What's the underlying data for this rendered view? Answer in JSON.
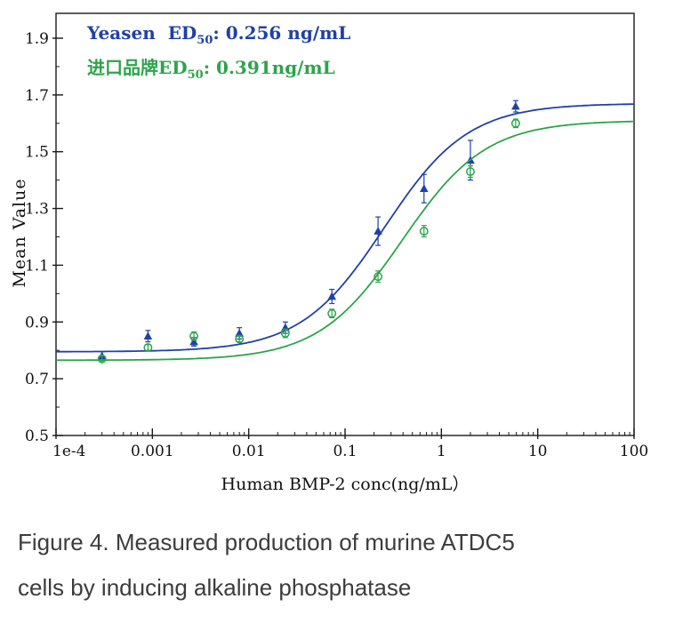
{
  "chart_data": {
    "type": "scatter",
    "title": "",
    "xlabel": "Human BMP-2 conc(ng/mL）",
    "ylabel": "Mean Value",
    "xscale": "log",
    "xlim": [
      0.0001,
      100
    ],
    "ylim": [
      0.5,
      1.9
    ],
    "grid": false,
    "legend_position": "top-left",
    "x_tick_labels": [
      "1e-4",
      "0.001",
      "0.01",
      "0.1",
      "1",
      "10",
      "100"
    ],
    "x_tick_values": [
      0.0001,
      0.001,
      0.01,
      0.1,
      1,
      10,
      100
    ],
    "y_tick_labels": [
      "0.5",
      "0.7",
      "0.9",
      "1.1",
      "1.3",
      "1.5",
      "1.7",
      "1.9"
    ],
    "y_tick_values": [
      0.5,
      0.7,
      0.9,
      1.1,
      1.3,
      1.5,
      1.7,
      1.9
    ],
    "series": [
      {
        "name": "Yeasen",
        "color": "#2040a8",
        "marker": "triangle",
        "ed50": "0.256 ng/mL",
        "legend": {
          "name": "Yeasen",
          "ed_label": "ED",
          "ed_sub": "50",
          "ed_value": ": 0.256 ng/mL"
        },
        "x": [
          0.0003,
          0.0009,
          0.0027,
          0.008,
          0.024,
          0.073,
          0.22,
          0.66,
          2.0,
          5.9
        ],
        "y": [
          0.78,
          0.85,
          0.83,
          0.86,
          0.88,
          0.99,
          1.22,
          1.37,
          1.47,
          1.66
        ],
        "yerr": [
          0.015,
          0.02,
          0.015,
          0.02,
          0.02,
          0.025,
          0.05,
          0.05,
          0.07,
          0.02
        ],
        "fit": {
          "bottom": 0.795,
          "top": 1.67,
          "ed50": 0.256,
          "hill": 1.0
        }
      },
      {
        "name": "进口品牌",
        "color": "#2ca44a",
        "marker": "circle-open",
        "ed50": "0.391 ng/mL",
        "legend": {
          "name": "进口品牌",
          "ed_label": "ED",
          "ed_sub": "50",
          "ed_value": ": 0.391ng/mL"
        },
        "x": [
          0.0003,
          0.0009,
          0.0027,
          0.008,
          0.024,
          0.073,
          0.22,
          0.66,
          2.0,
          5.9
        ],
        "y": [
          0.77,
          0.81,
          0.85,
          0.84,
          0.86,
          0.93,
          1.06,
          1.22,
          1.43,
          1.6
        ],
        "yerr": [
          0.01,
          0.01,
          0.015,
          0.01,
          0.015,
          0.015,
          0.02,
          0.02,
          0.02,
          0.015
        ],
        "fit": {
          "bottom": 0.765,
          "top": 1.61,
          "ed50": 0.391,
          "hill": 1.0
        }
      }
    ]
  },
  "caption": {
    "line1": "Figure 4. Measured production of murine ATDC5",
    "line2": "cells by inducing alkaline phosphatase"
  }
}
